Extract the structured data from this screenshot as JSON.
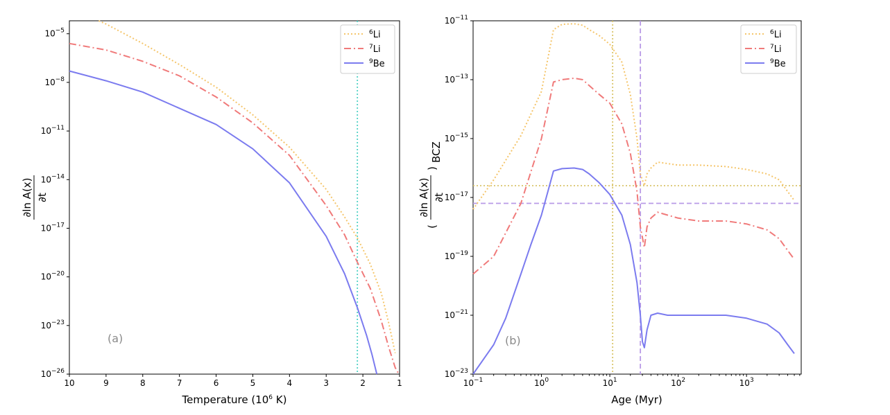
{
  "colors": {
    "li6": "#f5c56a",
    "li7": "#f07a7a",
    "be9": "#7b7bef",
    "ref_cyan": "#4fd1c5",
    "ref_gold": "#d9c46a",
    "ref_purple": "#b89ae6"
  },
  "chart_data": [
    {
      "type": "line",
      "panel_label": "(a)",
      "xlabel_main": "Temperature (10",
      "xlabel_sup": "6",
      "xlabel_tail": " K)",
      "ylabel_numerator": "∂ln A(x)",
      "ylabel_denominator": "∂t",
      "x_scale": "linear",
      "x_reversed": true,
      "xlim": [
        10,
        1
      ],
      "y_scale": "log",
      "ylim_exp": [
        -26,
        -4.2
      ],
      "x_ticks": [
        10,
        9,
        8,
        7,
        6,
        5,
        4,
        3,
        2,
        1
      ],
      "y_tick_exponents": [
        -26,
        -23,
        -20,
        -17,
        -14,
        -11,
        -8,
        -5
      ],
      "reference_lines": [
        {
          "orientation": "vertical",
          "x": 2.15,
          "color_key": "ref_cyan",
          "style": "dotted"
        }
      ],
      "legend": {
        "placement": "top-right",
        "entries": [
          {
            "sup": "6",
            "label": "Li",
            "series": "li6"
          },
          {
            "sup": "7",
            "label": "Li",
            "series": "li7"
          },
          {
            "sup": "9",
            "label": "Be",
            "series": "be9"
          }
        ]
      },
      "series": [
        {
          "name": "6Li",
          "key": "li6",
          "style": "dotted",
          "x": [
            9.2,
            9,
            8,
            7,
            6,
            5,
            4,
            3,
            2.5,
            2.15,
            1.8,
            1.5,
            1.3,
            1.12
          ],
          "log10_y": [
            -4.2,
            -4.4,
            -5.6,
            -6.9,
            -8.3,
            -10.0,
            -12.0,
            -14.6,
            -16.3,
            -17.6,
            -19.2,
            -21.0,
            -22.8,
            -24.7
          ]
        },
        {
          "name": "7Li",
          "key": "li7",
          "style": "dashdot",
          "x": [
            10,
            9,
            8,
            7,
            6,
            5,
            4,
            3,
            2.5,
            2.15,
            1.8,
            1.5,
            1.3,
            1.12,
            1.02
          ],
          "log10_y": [
            -5.6,
            -6.0,
            -6.7,
            -7.6,
            -8.9,
            -10.5,
            -12.5,
            -15.6,
            -17.4,
            -19.1,
            -20.7,
            -22.7,
            -24.3,
            -25.6,
            -26.0
          ]
        },
        {
          "name": "9Be",
          "key": "be9",
          "style": "solid",
          "x": [
            10,
            9,
            8,
            7,
            6,
            5,
            4,
            3,
            2.5,
            2.15,
            1.9,
            1.75,
            1.62
          ],
          "log10_y": [
            -7.3,
            -7.9,
            -8.6,
            -9.6,
            -10.6,
            -12.1,
            -14.2,
            -17.5,
            -19.8,
            -21.9,
            -23.6,
            -24.8,
            -26.0
          ]
        }
      ]
    },
    {
      "type": "line",
      "panel_label": "(b)",
      "xlabel": "Age (Myr)",
      "ylabel_numerator": "∂ln A(x)",
      "ylabel_denominator": "∂t",
      "ylabel_subscript": "BCZ",
      "x_scale": "log",
      "xlim_exp": [
        -1,
        3.8
      ],
      "y_scale": "log",
      "ylim_exp": [
        -23,
        -11
      ],
      "x_tick_exponents": [
        -1,
        0,
        1,
        2,
        3
      ],
      "y_tick_exponents": [
        -23,
        -21,
        -19,
        -17,
        -15,
        -13,
        -11
      ],
      "reference_lines": [
        {
          "orientation": "vertical",
          "x": 11,
          "color_key": "ref_gold",
          "style": "dotted"
        },
        {
          "orientation": "vertical",
          "x": 28,
          "color_key": "ref_purple",
          "style": "dashed"
        },
        {
          "orientation": "horizontal",
          "log10_y": -16.6,
          "color_key": "ref_gold",
          "style": "dotted"
        },
        {
          "orientation": "horizontal",
          "log10_y": -17.2,
          "color_key": "ref_purple",
          "style": "dashed"
        }
      ],
      "legend": {
        "placement": "top-right",
        "entries": [
          {
            "sup": "6",
            "label": "Li",
            "series": "li6"
          },
          {
            "sup": "7",
            "label": "Li",
            "series": "li7"
          },
          {
            "sup": "9",
            "label": "Be",
            "series": "be9"
          }
        ]
      },
      "series": [
        {
          "name": "6Li",
          "key": "li6",
          "style": "dotted",
          "x": [
            0.1,
            0.2,
            0.5,
            1.0,
            1.5,
            2.0,
            3.0,
            4.0,
            5.0,
            7.0,
            10,
            15,
            20,
            25,
            28,
            32,
            35,
            40,
            50,
            70,
            100,
            200,
            500,
            1000,
            2000,
            3000,
            4000,
            5000
          ],
          "log10_y": [
            -17.4,
            -16.4,
            -14.9,
            -13.4,
            -11.3,
            -11.12,
            -11.1,
            -11.15,
            -11.3,
            -11.5,
            -11.8,
            -12.4,
            -13.5,
            -15.0,
            -16.2,
            -16.6,
            -16.2,
            -16.0,
            -15.8,
            -15.85,
            -15.9,
            -15.9,
            -15.95,
            -16.05,
            -16.2,
            -16.4,
            -16.8,
            -17.1
          ]
        },
        {
          "name": "7Li",
          "key": "li7",
          "style": "dashdot",
          "x": [
            0.1,
            0.2,
            0.5,
            1.0,
            1.5,
            2.0,
            3.0,
            4.0,
            5.0,
            7.0,
            10,
            15,
            20,
            25,
            28,
            32,
            35,
            40,
            50,
            70,
            100,
            200,
            500,
            1000,
            2000,
            3000,
            4000,
            5000
          ],
          "log10_y": [
            -19.6,
            -19.0,
            -17.2,
            -15.0,
            -13.08,
            -13.0,
            -12.95,
            -13.0,
            -13.2,
            -13.5,
            -13.8,
            -14.5,
            -15.5,
            -16.8,
            -18.0,
            -18.7,
            -18.0,
            -17.7,
            -17.5,
            -17.6,
            -17.7,
            -17.8,
            -17.8,
            -17.9,
            -18.1,
            -18.4,
            -18.8,
            -19.1
          ]
        },
        {
          "name": "9Be",
          "key": "be9",
          "style": "solid",
          "x": [
            0.1,
            0.2,
            0.3,
            0.5,
            0.7,
            1.0,
            1.5,
            2.0,
            3.0,
            4.0,
            5.0,
            7.0,
            10,
            15,
            20,
            25,
            28,
            30,
            32,
            35,
            40,
            50,
            70,
            100,
            200,
            500,
            1000,
            2000,
            3000,
            4000,
            5000
          ],
          "log10_y": [
            -23.0,
            -22.0,
            -21.1,
            -19.6,
            -18.6,
            -17.6,
            -16.1,
            -16.02,
            -16.0,
            -16.05,
            -16.2,
            -16.5,
            -16.9,
            -17.6,
            -18.6,
            -19.9,
            -21.0,
            -21.9,
            -22.1,
            -21.5,
            -21.0,
            -20.93,
            -21.0,
            -21.0,
            -21.0,
            -21.0,
            -21.1,
            -21.3,
            -21.6,
            -22.0,
            -22.3
          ]
        }
      ]
    }
  ]
}
